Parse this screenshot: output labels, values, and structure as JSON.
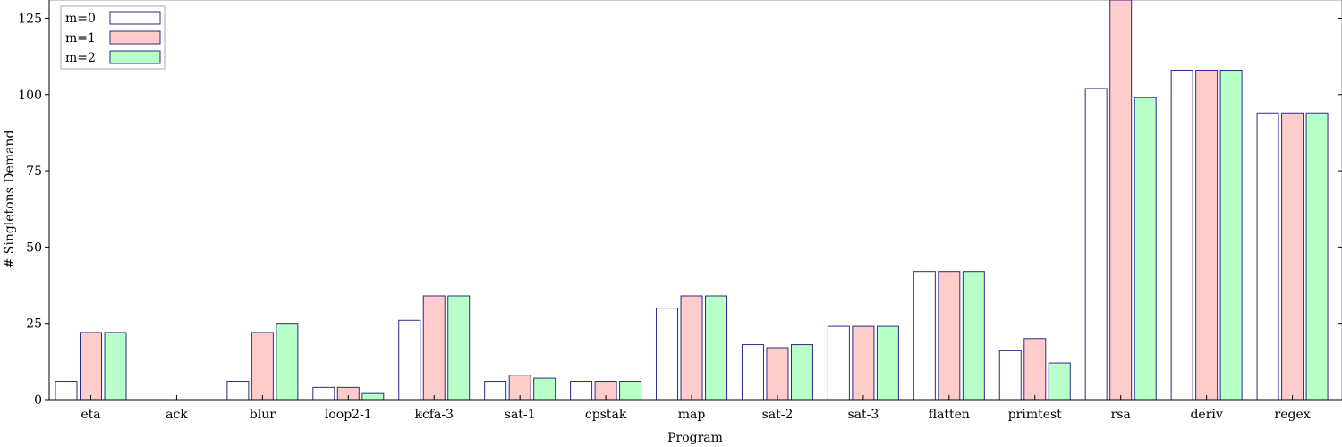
{
  "chart_data": {
    "type": "bar",
    "xlabel": "Program",
    "ylabel": "# Singletons Demand",
    "ylim": [
      0,
      131
    ],
    "yticks": [
      0,
      25,
      50,
      75,
      100,
      125
    ],
    "grid": false,
    "legend_position": "top-left",
    "categories": [
      "eta",
      "ack",
      "blur",
      "loop2-1",
      "kcfa-3",
      "sat-1",
      "cpstak",
      "map",
      "sat-2",
      "sat-3",
      "flatten",
      "primtest",
      "rsa",
      "deriv",
      "regex"
    ],
    "series": [
      {
        "name": "m=0",
        "color": "#ffffff",
        "stroke": "#2a2a8c",
        "values": [
          6,
          0,
          6,
          4,
          26,
          6,
          6,
          30,
          18,
          24,
          42,
          16,
          102,
          108,
          94
        ]
      },
      {
        "name": "m=1",
        "color": "#ffcccc",
        "stroke": "#2a2a8c",
        "values": [
          22,
          0,
          22,
          4,
          34,
          8,
          6,
          34,
          17,
          24,
          42,
          20,
          131,
          108,
          94
        ]
      },
      {
        "name": "m=2",
        "color": "#b8ffc8",
        "stroke": "#2a2a8c",
        "values": [
          22,
          0,
          25,
          2,
          34,
          7,
          6,
          34,
          18,
          24,
          42,
          12,
          99,
          108,
          94
        ]
      }
    ]
  }
}
